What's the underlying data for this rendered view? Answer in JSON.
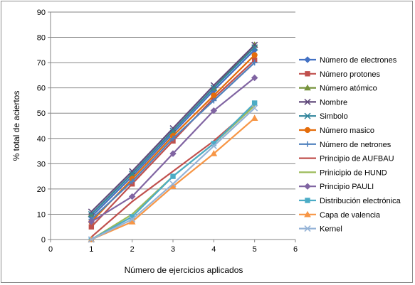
{
  "chart_data": {
    "type": "line",
    "title": "",
    "xlabel": "Número de ejercicios aplicados",
    "ylabel": "% total de aciertos",
    "xlim": [
      0,
      6
    ],
    "ylim": [
      0,
      90
    ],
    "xticks": [
      "0",
      "1",
      "2",
      "3",
      "4",
      "5",
      "6"
    ],
    "yticks": [
      "0",
      "10",
      "20",
      "30",
      "40",
      "50",
      "60",
      "70",
      "80",
      "90"
    ],
    "grid": "horizontal",
    "legend_position": "right",
    "x": [
      1,
      2,
      3,
      4,
      5
    ],
    "series": [
      {
        "name": "Número de electrones",
        "color": "#4472C4",
        "marker": "diamond",
        "values": [
          9,
          25,
          42,
          59,
          75
        ]
      },
      {
        "name": "Número protones",
        "color": "#C0504D",
        "marker": "square",
        "values": [
          5,
          22,
          39,
          56,
          71
        ]
      },
      {
        "name": "Número atómico",
        "color": "#77933C",
        "marker": "triangle",
        "values": [
          10,
          26,
          43,
          60,
          77
        ]
      },
      {
        "name": "Nombre",
        "color": "#604A7B",
        "marker": "x",
        "values": [
          11,
          27,
          44,
          61,
          77
        ]
      },
      {
        "name": "Simbolo",
        "color": "#31859C",
        "marker": "x",
        "values": [
          10,
          26,
          43,
          60,
          76
        ]
      },
      {
        "name": "Número masico",
        "color": "#E46C0A",
        "marker": "circle",
        "values": [
          7,
          24,
          41,
          57,
          73
        ]
      },
      {
        "name": "Número de netrones",
        "color": "#4F81BD",
        "marker": "plus",
        "values": [
          8,
          23,
          40,
          55,
          70
        ]
      },
      {
        "name": "Principio de AUFBAU",
        "color": "#C0504D",
        "marker": "none",
        "values": [
          1,
          15,
          27,
          39,
          53
        ]
      },
      {
        "name": "Prinicipio de HUND",
        "color": "#9BBB59",
        "marker": "none",
        "values": [
          0,
          10,
          25,
          38,
          53
        ]
      },
      {
        "name": "Principio PAULI",
        "color": "#8064A2",
        "marker": "diamond",
        "values": [
          7,
          17,
          34,
          51,
          64
        ]
      },
      {
        "name": "Distribución electrónica",
        "color": "#4BACC6",
        "marker": "square",
        "values": [
          0,
          9,
          25,
          38,
          54
        ]
      },
      {
        "name": "Capa de valencia",
        "color": "#F79646",
        "marker": "triangle",
        "values": [
          0,
          7,
          21,
          34,
          48
        ]
      },
      {
        "name": "Kernel",
        "color": "#95B3D7",
        "marker": "x",
        "values": [
          0,
          8,
          22,
          37,
          52
        ]
      }
    ]
  }
}
